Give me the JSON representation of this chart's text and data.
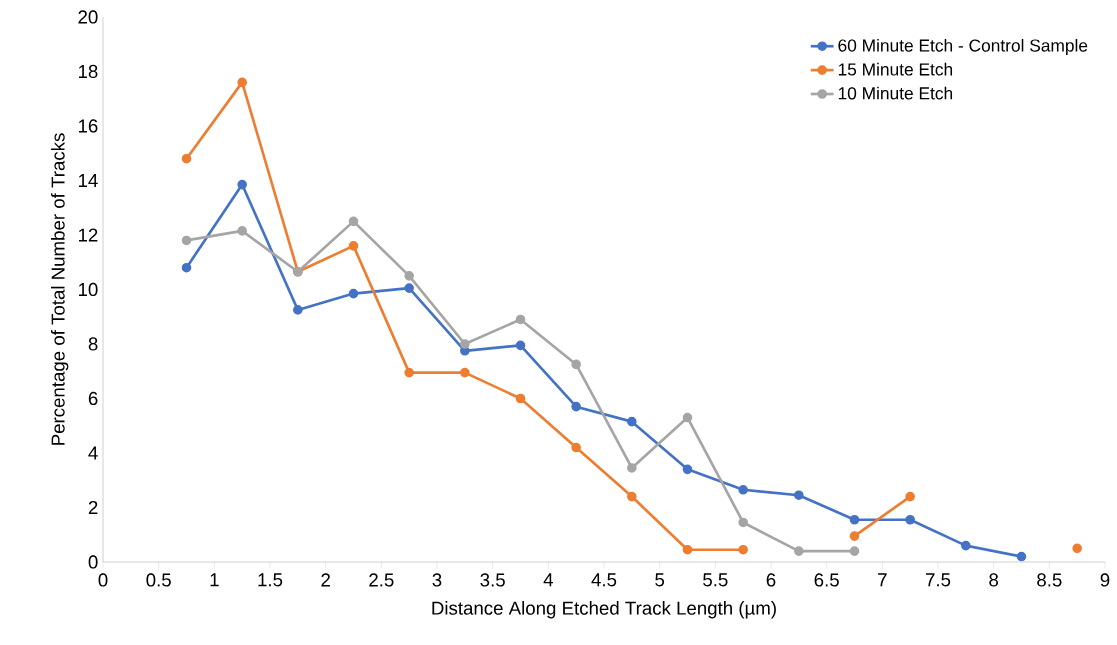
{
  "chart_data": {
    "type": "line",
    "xlabel": "Distance Along Etched Track Length (µm)",
    "ylabel": "Percentage of Total Number of Tracks",
    "x": [
      0.75,
      1.25,
      1.75,
      2.25,
      2.75,
      3.25,
      3.75,
      4.25,
      4.75,
      5.25,
      5.75,
      6.25,
      6.75,
      7.25,
      7.75,
      8.25,
      8.75
    ],
    "series": [
      {
        "name": "60 Minute Etch - Control Sample",
        "color": "#4472c4",
        "values": [
          10.8,
          13.85,
          9.25,
          9.85,
          10.05,
          7.75,
          7.95,
          5.7,
          5.15,
          3.4,
          2.65,
          2.45,
          1.55,
          1.55,
          0.6,
          0.2,
          null
        ]
      },
      {
        "name": "15 Minute Etch",
        "color": "#ed7d31",
        "values": [
          14.8,
          17.6,
          10.65,
          11.6,
          6.95,
          6.95,
          6.0,
          4.2,
          2.4,
          0.45,
          0.45,
          null,
          0.95,
          2.4,
          null,
          null,
          0.5
        ]
      },
      {
        "name": "10 Minute Etch",
        "color": "#a5a5a5",
        "values": [
          11.8,
          12.15,
          10.65,
          12.5,
          10.5,
          8.0,
          8.9,
          7.25,
          3.45,
          5.3,
          1.45,
          0.4,
          0.4,
          null,
          null,
          null,
          null
        ]
      }
    ],
    "xlim": [
      0,
      9
    ],
    "ylim": [
      0,
      20
    ],
    "xticks": [
      0,
      0.5,
      1,
      1.5,
      2,
      2.5,
      3,
      3.5,
      4,
      4.5,
      5,
      5.5,
      6,
      6.5,
      7,
      7.5,
      8,
      8.5,
      9
    ],
    "yticks": [
      0,
      2,
      4,
      6,
      8,
      10,
      12,
      14,
      16,
      18,
      20
    ],
    "grid": false,
    "legend": "top right",
    "marker": "circle",
    "line_style": "solid"
  }
}
